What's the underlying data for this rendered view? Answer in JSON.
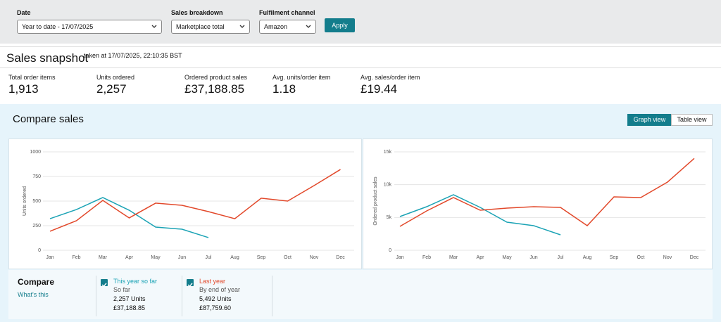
{
  "filters": [
    {
      "label": "Date",
      "value": "Year to date - 17/07/2025"
    },
    {
      "label": "Sales breakdown",
      "value": "Marketplace total"
    },
    {
      "label": "Fulfilment channel",
      "value": "Amazon"
    }
  ],
  "apply": "Apply",
  "snapshot": {
    "title": "Sales snapshot",
    "taken": "taken at 17/07/2025, 22:10:35 BST",
    "metrics": [
      {
        "label": "Total order items",
        "value": "1,913"
      },
      {
        "label": "Units ordered",
        "value": "2,257"
      },
      {
        "label": "Ordered product sales",
        "value": "£37,188.85"
      },
      {
        "label": "Avg. units/order item",
        "value": "1.18"
      },
      {
        "label": "Avg. sales/order item",
        "value": "£19.44"
      }
    ]
  },
  "compare_sales": {
    "title": "Compare sales",
    "views": [
      "Graph view",
      "Table view"
    ]
  },
  "chart_data": [
    {
      "type": "line",
      "y_label": "Units ordered",
      "categories": [
        "Jan",
        "Feb",
        "Mar",
        "Apr",
        "May",
        "Jun",
        "Jul",
        "Aug",
        "Sep",
        "Oct",
        "Nov",
        "Dec"
      ],
      "series": [
        {
          "name": "This year so far",
          "color": "#1ba3b5",
          "values": [
            321,
            414,
            536,
            407,
            236,
            214,
            129,
            null,
            null,
            null,
            null,
            null
          ]
        },
        {
          "name": "Last year",
          "color": "#e2482a",
          "values": [
            193,
            300,
            507,
            329,
            479,
            457,
            393,
            321,
            529,
            500,
            657,
            821
          ]
        }
      ],
      "ylim": [
        0,
        1000
      ],
      "yticks": [
        0,
        250,
        500,
        750,
        1000
      ],
      "grid": true
    },
    {
      "type": "line",
      "y_label": "Ordered product sales",
      "categories": [
        "Jan",
        "Feb",
        "Mar",
        "Apr",
        "May",
        "Jun",
        "Jul",
        "Aug",
        "Sep",
        "Oct",
        "Nov",
        "Dec"
      ],
      "series": [
        {
          "color": "#1ba3b5",
          "values": [
            5143,
            6643,
            8464,
            6536,
            4286,
            3750,
            2357,
            null,
            null,
            null,
            null,
            null
          ]
        },
        {
          "color": "#e2482a",
          "values": [
            3643,
            6000,
            8036,
            6107,
            6429,
            6643,
            6536,
            3750,
            8143,
            8036,
            10393,
            14000
          ]
        }
      ],
      "ylim": [
        0,
        15000
      ],
      "yticks": [
        0,
        {
          "value": 5000,
          "label": "5k"
        },
        {
          "value": 10000,
          "label": "10k"
        },
        {
          "value": 15000,
          "label": "15k"
        }
      ],
      "grid": true
    }
  ],
  "compare": {
    "title": "Compare",
    "help": "What's this",
    "items": [
      {
        "period": "So far",
        "units": "2,257 Units",
        "sales": "£37,188.85"
      },
      {
        "period": "By end of year",
        "units": "5,492 Units",
        "sales": "£87,759.60"
      }
    ]
  }
}
